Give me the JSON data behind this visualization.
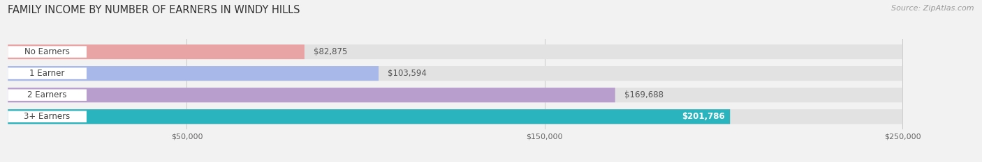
{
  "title": "FAMILY INCOME BY NUMBER OF EARNERS IN WINDY HILLS",
  "source": "Source: ZipAtlas.com",
  "categories": [
    "No Earners",
    "1 Earner",
    "2 Earners",
    "3+ Earners"
  ],
  "values": [
    82875,
    103594,
    169688,
    201786
  ],
  "bar_colors": [
    "#e8a4a4",
    "#a8b8e8",
    "#b89ecc",
    "#2ab4be"
  ],
  "label_colors": [
    "#555555",
    "#555555",
    "#555555",
    "#ffffff"
  ],
  "value_labels": [
    "$82,875",
    "$103,594",
    "$169,688",
    "$201,786"
  ],
  "xlim_data": [
    0,
    270000
  ],
  "xticks": [
    50000,
    150000,
    250000
  ],
  "xtick_labels": [
    "$50,000",
    "$150,000",
    "$250,000"
  ],
  "background_color": "#f2f2f2",
  "bar_bg_color": "#e2e2e2",
  "title_fontsize": 10.5,
  "source_fontsize": 8,
  "bar_label_fontsize": 8.5,
  "value_fontsize": 8.5,
  "bar_height": 0.68
}
